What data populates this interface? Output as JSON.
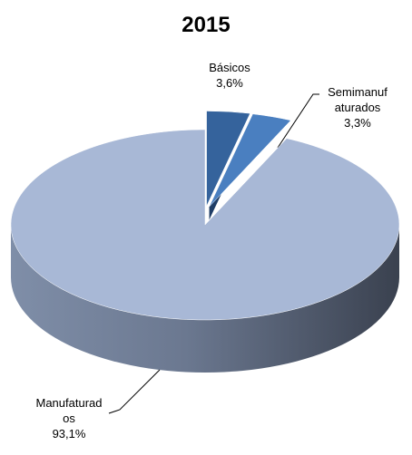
{
  "chart_data": {
    "type": "pie",
    "title": "2015",
    "categories": [
      "Básicos",
      "Semimanufaturados",
      "Manufaturados"
    ],
    "values": [
      3.6,
      3.3,
      93.1
    ],
    "value_labels": [
      "3,6%",
      "3,3%",
      "93,1%"
    ],
    "colors": [
      "#35639c",
      "#4a7fc0",
      "#a8b8d6"
    ]
  }
}
